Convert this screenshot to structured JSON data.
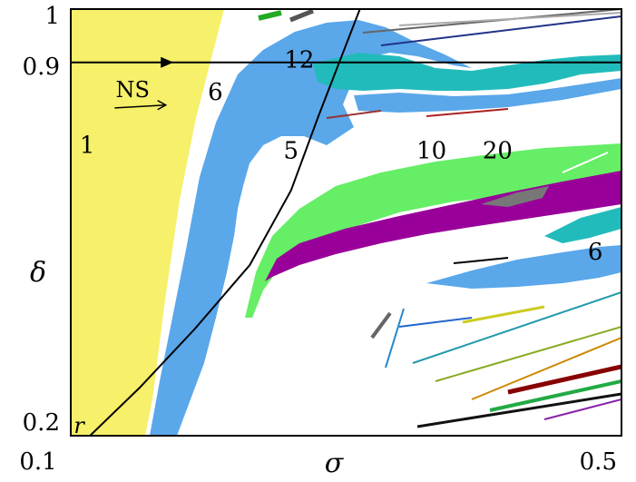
{
  "chart_data": {
    "type": "heatmap",
    "title": "",
    "xlabel": "σ",
    "ylabel": "δ",
    "xlim": [
      0.1,
      0.5
    ],
    "ylim": [
      0.2,
      1.0
    ],
    "x_ticks": [
      "0.1",
      "0.5"
    ],
    "y_ticks": [
      "0.2",
      "0.9",
      "1"
    ],
    "colors": {
      "period1": "#f6f06a",
      "period6": "#5aa7ea",
      "period5": "#66ee66",
      "period10": "#990099",
      "period12": "#22bbbb",
      "period20": "#777777",
      "ns_line": "#000000"
    },
    "regions": [
      {
        "label": "1",
        "x": 0.112,
        "y": 0.73
      },
      {
        "label": "6",
        "x": 0.205,
        "y": 0.83
      },
      {
        "label": "12",
        "x": 0.266,
        "y": 0.89
      },
      {
        "label": "5",
        "x": 0.26,
        "y": 0.72
      },
      {
        "label": "10",
        "x": 0.362,
        "y": 0.72
      },
      {
        "label": "20",
        "x": 0.41,
        "y": 0.72
      },
      {
        "label": "6",
        "x": 0.481,
        "y": 0.53
      }
    ],
    "annotations": {
      "ns": {
        "label": "NS",
        "x": 0.145,
        "y": 0.835,
        "arrow_to_x": 0.169,
        "arrow_to_y": 0.82
      },
      "curve_r": {
        "label": "r",
        "x": 0.106,
        "y": 0.205
      }
    },
    "horizontal_line": {
      "y": 0.9,
      "x_from": 0.1,
      "x_to": 0.5,
      "arrow_at_x": 0.17
    },
    "curve_r": [
      [
        0.114,
        0.2
      ],
      [
        0.15,
        0.29
      ],
      [
        0.19,
        0.4
      ],
      [
        0.23,
        0.52
      ],
      [
        0.26,
        0.66
      ],
      [
        0.28,
        0.8
      ],
      [
        0.31,
        1.0
      ]
    ]
  }
}
